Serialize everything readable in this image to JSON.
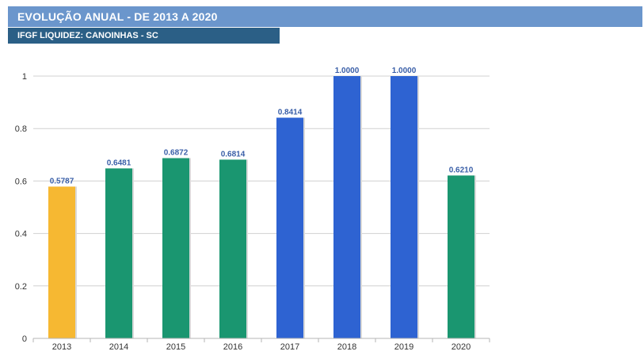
{
  "header": {
    "title": "EVOLUÇÃO ANUAL - DE 2013 A 2020",
    "subtitle": "IFGF LIQUIDEZ: CANOINHAS - SC"
  },
  "chart_data": {
    "type": "bar",
    "categories": [
      "2013",
      "2014",
      "2015",
      "2016",
      "2017",
      "2018",
      "2019",
      "2020"
    ],
    "values": [
      0.5787,
      0.6481,
      0.6872,
      0.6814,
      0.8414,
      1.0,
      1.0,
      0.621
    ],
    "value_labels": [
      "0.5787",
      "0.6481",
      "0.6872",
      "0.6814",
      "0.8414",
      "1.0000",
      "1.0000",
      "0.6210"
    ],
    "bar_colors": [
      "#f6b832",
      "#1a9670",
      "#1a9670",
      "#1a9670",
      "#2e63d2",
      "#2e63d2",
      "#2e63d2",
      "#1a9670"
    ],
    "ylim": [
      0,
      1
    ],
    "yticks": [
      0,
      0.2,
      0.4,
      0.6,
      0.8,
      1
    ],
    "ytick_labels": [
      "0",
      "0.2",
      "0.4",
      "0.6",
      "0.8",
      "1"
    ],
    "grid": true,
    "legend": "none"
  }
}
